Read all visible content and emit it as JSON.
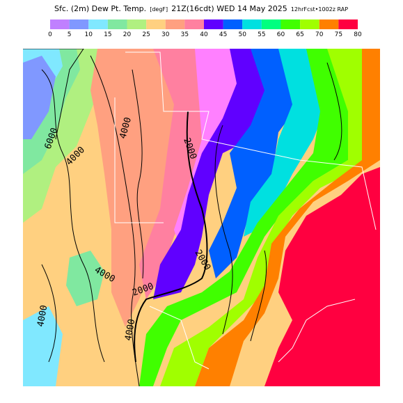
{
  "title": {
    "product": "Sfc. (2m) Dew Pt. Temp.",
    "units": "[degF]",
    "valid": "21Z(16cdt) WED 14 May 2025",
    "model": "12hrFcst•1002z RAP"
  },
  "colorbar": {
    "labels": [
      0,
      5,
      10,
      15,
      20,
      25,
      30,
      35,
      40,
      45,
      50,
      55,
      60,
      65,
      70,
      75,
      80
    ],
    "colors": [
      "#c080ff",
      "#8098ff",
      "#80e8ff",
      "#80e8a0",
      "#b0f080",
      "#ffd080",
      "#ffa080",
      "#ff80a0",
      "#6000ff",
      "#0060ff",
      "#00e0e0",
      "#00ff80",
      "#40ff00",
      "#a0ff00",
      "#ff8000",
      "#ff0040",
      "#ff00c0"
    ]
  },
  "contour_labels": [
    "6000",
    "4000",
    "4000",
    "2000",
    "2000",
    "4000",
    "2000",
    "4000",
    "4000"
  ]
}
